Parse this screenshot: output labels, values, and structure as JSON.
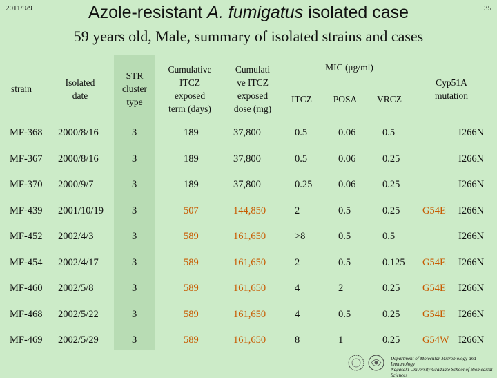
{
  "header": {
    "date": "2011/9/9",
    "page_number": "35",
    "title_part1": "Azole-resistant ",
    "title_italic": "A. fumigatus",
    "title_part2": " isolated case",
    "subtitle": "59 years old, Male, summary of isolated strains and cases"
  },
  "columns": {
    "strain": "strain",
    "isolated_date_1": "Isolated",
    "isolated_date_2": "date",
    "str_1": "STR",
    "str_2": "cluster",
    "str_3": "type",
    "cum_term_1": "Cumulative",
    "cum_term_2": "ITCZ",
    "cum_term_3": "exposed",
    "cum_term_4": "term (days)",
    "cum_dose_1": "Cumulati",
    "cum_dose_2": "ve ITCZ",
    "cum_dose_3": "exposed",
    "cum_dose_4": "dose (mg)",
    "mic": "MIC (μg/ml)",
    "itcz": "ITCZ",
    "posa": "POSA",
    "vrcz": "VRCZ",
    "cyp_1": "Cyp51A",
    "cyp_2": "mutation"
  },
  "rows": [
    {
      "strain": "MF-368",
      "date": "2000/8/16",
      "str": "3",
      "term": "189",
      "dose": "37,800",
      "itcz": "0.5",
      "posa": "0.06",
      "vrcz": "0.5",
      "mut1": "",
      "mut2": "I266N",
      "highlight": false
    },
    {
      "strain": "MF-367",
      "date": "2000/8/16",
      "str": "3",
      "term": "189",
      "dose": "37,800",
      "itcz": "0.5",
      "posa": "0.06",
      "vrcz": "0.25",
      "mut1": "",
      "mut2": "I266N",
      "highlight": false
    },
    {
      "strain": "MF-370",
      "date": "2000/9/7",
      "str": "3",
      "term": "189",
      "dose": "37,800",
      "itcz": "0.25",
      "posa": "0.06",
      "vrcz": "0.25",
      "mut1": "",
      "mut2": "I266N",
      "highlight": false
    },
    {
      "strain": "MF-439",
      "date": "2001/10/19",
      "str": "3",
      "term": "507",
      "dose": "144,850",
      "itcz": "2",
      "posa": "0.5",
      "vrcz": "0.25",
      "mut1": "G54E",
      "mut2": "I266N",
      "highlight": true
    },
    {
      "strain": "MF-452",
      "date": "2002/4/3",
      "str": "3",
      "term": "589",
      "dose": "161,650",
      "itcz": ">8",
      "posa": "0.5",
      "vrcz": "0.5",
      "mut1": "",
      "mut2": "I266N",
      "highlight": true
    },
    {
      "strain": "MF-454",
      "date": "2002/4/17",
      "str": "3",
      "term": "589",
      "dose": "161,650",
      "itcz": "2",
      "posa": "0.5",
      "vrcz": "0.125",
      "mut1": "G54E",
      "mut2": "I266N",
      "highlight": true
    },
    {
      "strain": "MF-460",
      "date": "2002/5/8",
      "str": "3",
      "term": "589",
      "dose": "161,650",
      "itcz": "4",
      "posa": "2",
      "vrcz": "0.25",
      "mut1": "G54E",
      "mut2": "I266N",
      "highlight": true
    },
    {
      "strain": "MF-468",
      "date": "2002/5/22",
      "str": "3",
      "term": "589",
      "dose": "161,650",
      "itcz": "4",
      "posa": "0.5",
      "vrcz": "0.25",
      "mut1": "G54E",
      "mut2": "I266N",
      "highlight": true
    },
    {
      "strain": "MF-469",
      "date": "2002/5/29",
      "str": "3",
      "term": "589",
      "dose": "161,650",
      "itcz": "8",
      "posa": "1",
      "vrcz": "0.25",
      "mut1": "G54W",
      "mut2": "I266N",
      "highlight": true
    }
  ],
  "footer": {
    "dept_line1": "Department of Molecular Microbiology and Immunology",
    "dept_line2": "Nagasaki University Graduate School of Biomedical Sciences"
  },
  "colors": {
    "background": "#ccebc8",
    "highlight": "#c85a00",
    "stripe": "#b8dcb4"
  }
}
